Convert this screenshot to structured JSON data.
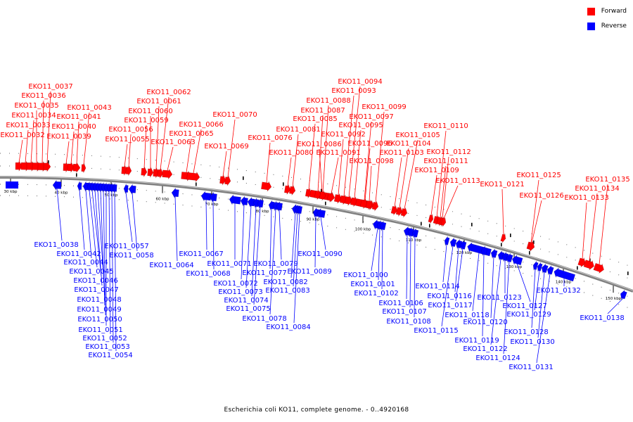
{
  "legend": {
    "forward_label": "Forward",
    "reverse_label": "Reverse",
    "forward_color": "#ff0000",
    "reverse_color": "#0000ff"
  },
  "caption": "Escherichia coli KO11, complete genome. - 0..4920168",
  "colors": {
    "forward": "#ff0000",
    "reverse": "#0000ff",
    "axis": "#808080",
    "tick": "#000000"
  },
  "axis_ticks": [
    "30 kbp",
    "40 kbp",
    "50 kbp",
    "60 kbp",
    "70 kbp",
    "80 kbp",
    "90 kbp",
    "100 kbp",
    "110 kbp",
    "120 kbp",
    "130 kbp",
    "140 kbp",
    "150 kbp"
  ],
  "forward_genes": [
    "EKO11_0032",
    "EKO11_0033",
    "EKO11_0034",
    "EKO11_0035",
    "EKO11_0036",
    "EKO11_0037",
    "EKO11_0039",
    "EKO11_0040",
    "EKO11_0041",
    "EKO11_0043",
    "EKO11_0055",
    "EKO11_0056",
    "EKO11_0059",
    "EKO11_0060",
    "EKO11_0061",
    "EKO11_0062",
    "EKO11_0063",
    "EKO11_0065",
    "EKO11_0066",
    "EKO11_0069",
    "EKO11_0070",
    "EKO11_0076",
    "EKO11_0080",
    "EKO11_0081",
    "EKO11_0085",
    "EKO11_0086",
    "EKO11_0087",
    "EKO11_0088",
    "EKO11_0091",
    "EKO11_0092",
    "EKO11_0093",
    "EKO11_0094",
    "EKO11_0095",
    "EKO11_0096",
    "EKO11_0097",
    "EKO11_0098",
    "EKO11_0099",
    "EKO11_0103",
    "EKO11_0104",
    "EKO11_0105",
    "EKO11_0109",
    "EKO11_0110",
    "EKO11_0111",
    "EKO11_0112",
    "EKO11_0113",
    "EKO11_0121",
    "EKO11_0125",
    "EKO11_0126",
    "EKO11_0133",
    "EKO11_0134",
    "EKO11_0135"
  ],
  "reverse_genes": [
    "EKO11_0038",
    "EKO11_0042",
    "EKO11_0044",
    "EKO11_0045",
    "EKO11_0046",
    "EKO11_0047",
    "EKO11_0048",
    "EKO11_0049",
    "EKO11_0050",
    "EKO11_0051",
    "EKO11_0052",
    "EKO11_0053",
    "EKO11_0054",
    "EKO11_0057",
    "EKO11_0058",
    "EKO11_0064",
    "EKO11_0067",
    "EKO11_0068",
    "EKO11_0071",
    "EKO11_0072",
    "EKO11_0073",
    "EKO11_0074",
    "EKO11_0075",
    "EKO11_0077",
    "EKO11_0078",
    "EKO11_0079",
    "EKO11_0082",
    "EKO11_0083",
    "EKO11_0084",
    "EKO11_0089",
    "EKO11_0090",
    "EKO11_0100",
    "EKO11_0101",
    "EKO11_0102",
    "EKO11_0106",
    "EKO11_0107",
    "EKO11_0108",
    "EKO11_0114",
    "EKO11_0115",
    "EKO11_0116",
    "EKO11_0117",
    "EKO11_0118",
    "EKO11_0119",
    "EKO11_0120",
    "EKO11_0122",
    "EKO11_0123",
    "EKO11_0124",
    "EKO11_0127",
    "EKO11_0128",
    "EKO11_0129",
    "EKO11_0130",
    "EKO11_0131",
    "EKO11_0132",
    "EKO11_0138"
  ]
}
